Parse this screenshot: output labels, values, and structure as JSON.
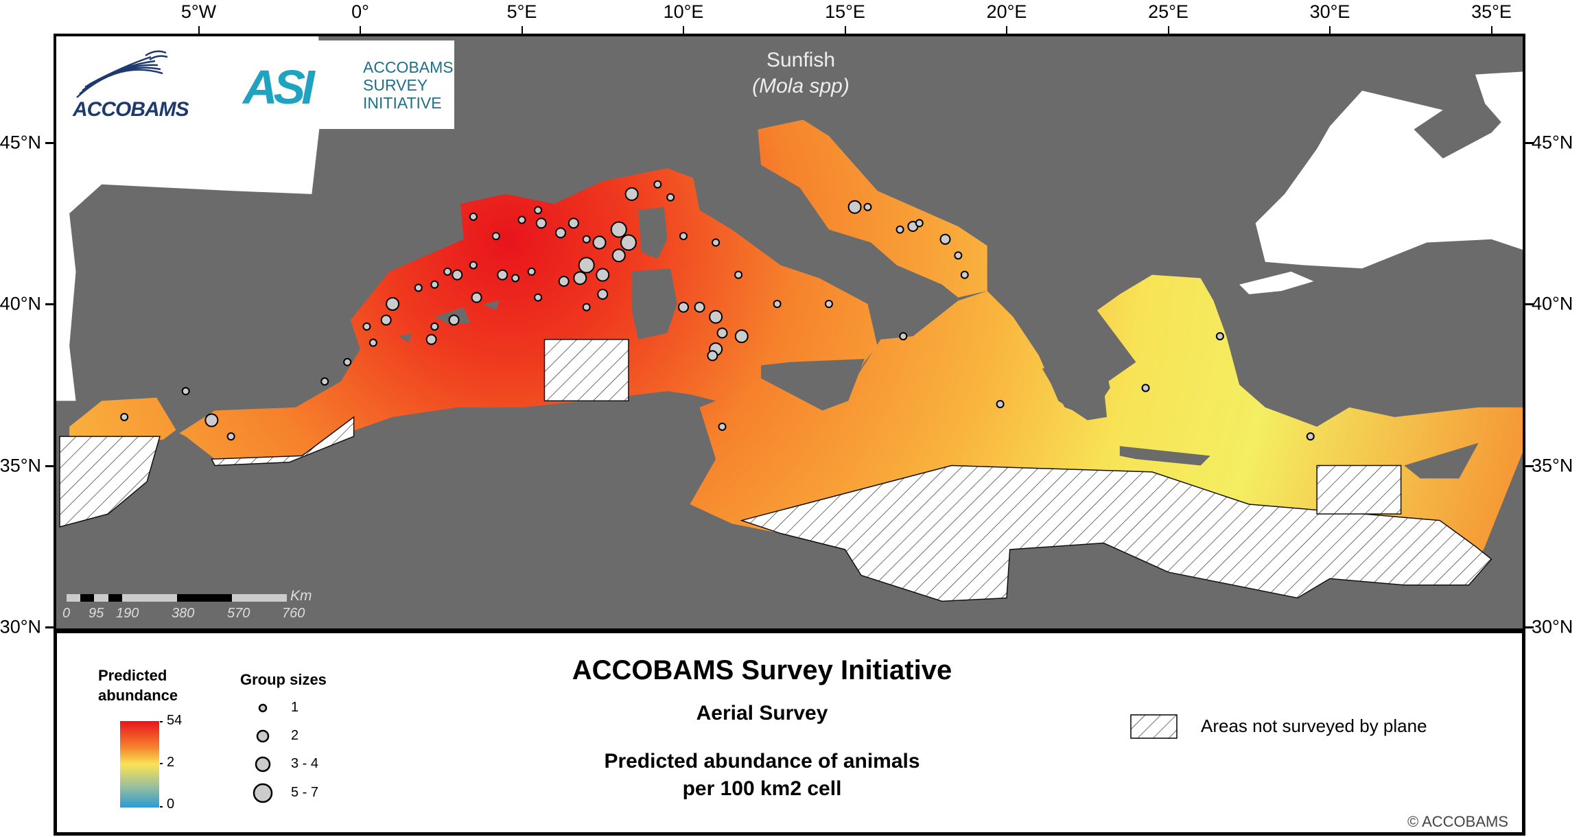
{
  "axes": {
    "lon_labels": [
      "5°W",
      "0°",
      "5°E",
      "10°E",
      "15°E",
      "20°E",
      "25°E",
      "30°E",
      "35°E"
    ],
    "lon_values": [
      -5,
      0,
      5,
      10,
      15,
      20,
      25,
      30,
      35
    ],
    "lat_labels": [
      "45°N",
      "40°N",
      "35°N",
      "30°N"
    ],
    "lat_values": [
      45,
      40,
      35,
      30
    ]
  },
  "map": {
    "species": "Sunfish",
    "species_latin": "(Mola spp)",
    "logos": {
      "accobams": "ACCOBAMS",
      "asi_mark": "ASI",
      "asi_text": [
        "ACCOBAMS",
        "SURVEY",
        "INITIATIVE"
      ]
    },
    "scale_bar": {
      "labels": [
        "0",
        "95",
        "190",
        "380",
        "570",
        "760"
      ],
      "unit": "Km"
    },
    "colors": {
      "land": "#6b6b6b",
      "outside": "#ffffff",
      "high": "#e8141c",
      "mid": "#f6f05a",
      "low": "#2b9ad3",
      "dot_fill": "#cccccc"
    },
    "sightings": [
      [
        3.5,
        42.7,
        1
      ],
      [
        4.2,
        42.1,
        1
      ],
      [
        5.0,
        42.6,
        1
      ],
      [
        5.5,
        42.9,
        1
      ],
      [
        5.6,
        42.5,
        2
      ],
      [
        6.2,
        42.2,
        2
      ],
      [
        6.6,
        42.5,
        2
      ],
      [
        7.0,
        42.0,
        1
      ],
      [
        7.4,
        41.9,
        3
      ],
      [
        8.0,
        42.3,
        4
      ],
      [
        8.3,
        41.9,
        4
      ],
      [
        8.0,
        41.5,
        3
      ],
      [
        7.0,
        41.2,
        4
      ],
      [
        7.5,
        40.9,
        3
      ],
      [
        6.8,
        40.8,
        3
      ],
      [
        7.5,
        40.3,
        2
      ],
      [
        6.3,
        40.7,
        2
      ],
      [
        5.3,
        41.0,
        1
      ],
      [
        4.8,
        40.8,
        1
      ],
      [
        5.5,
        40.2,
        1
      ],
      [
        4.4,
        40.9,
        2
      ],
      [
        3.0,
        40.9,
        2
      ],
      [
        3.5,
        41.2,
        1
      ],
      [
        2.7,
        41.0,
        1
      ],
      [
        2.3,
        40.6,
        1
      ],
      [
        1.8,
        40.5,
        1
      ],
      [
        1.0,
        40.0,
        3
      ],
      [
        0.8,
        39.5,
        2
      ],
      [
        0.2,
        39.3,
        1
      ],
      [
        0.4,
        38.8,
        1
      ],
      [
        2.2,
        38.9,
        2
      ],
      [
        2.3,
        39.3,
        1
      ],
      [
        -0.4,
        38.2,
        1
      ],
      [
        -1.1,
        37.6,
        1
      ],
      [
        -4.6,
        36.4,
        3
      ],
      [
        -4.0,
        35.9,
        1
      ],
      [
        -7.3,
        36.5,
        1
      ],
      [
        -5.4,
        37.3,
        1
      ],
      [
        2.9,
        39.5,
        2
      ],
      [
        3.6,
        40.2,
        2
      ],
      [
        7.0,
        39.9,
        1
      ],
      [
        8.4,
        43.4,
        3
      ],
      [
        9.2,
        43.7,
        1
      ],
      [
        9.6,
        43.3,
        1
      ],
      [
        10.0,
        42.1,
        1
      ],
      [
        11.0,
        41.9,
        1
      ],
      [
        11.7,
        40.9,
        1
      ],
      [
        12.9,
        40.0,
        1
      ],
      [
        10.0,
        39.9,
        2
      ],
      [
        10.5,
        39.9,
        2
      ],
      [
        11.0,
        39.6,
        3
      ],
      [
        11.2,
        39.1,
        2
      ],
      [
        11.8,
        39.0,
        3
      ],
      [
        11.0,
        38.6,
        3
      ],
      [
        10.9,
        38.4,
        2
      ],
      [
        14.5,
        40.0,
        1
      ],
      [
        15.3,
        43.0,
        3
      ],
      [
        15.7,
        43.0,
        1
      ],
      [
        16.7,
        42.3,
        1
      ],
      [
        17.1,
        42.4,
        2
      ],
      [
        17.3,
        42.5,
        1
      ],
      [
        18.1,
        42.0,
        2
      ],
      [
        18.5,
        41.5,
        1
      ],
      [
        18.7,
        40.9,
        1
      ],
      [
        16.8,
        39.0,
        1
      ],
      [
        19.8,
        36.9,
        1
      ],
      [
        24.3,
        37.4,
        1
      ],
      [
        26.6,
        39.0,
        1
      ],
      [
        29.4,
        35.9,
        1
      ],
      [
        11.2,
        36.2,
        1
      ]
    ]
  },
  "legend": {
    "abundance_title": [
      "Predicted",
      "abundance"
    ],
    "abundance_ticks": [
      "54",
      "2",
      "0"
    ],
    "group_title": "Group sizes",
    "group_labels": [
      "1",
      "2",
      "3 - 4",
      "5 - 7"
    ],
    "title": "ACCOBAMS Survey Initiative",
    "subtitle": "Aerial Survey",
    "description": [
      "Predicted abundance of animals",
      "per 100 km2 cell"
    ],
    "hatch_label": "Areas not surveyed by plane",
    "copyright": "© ACCOBAMS"
  }
}
